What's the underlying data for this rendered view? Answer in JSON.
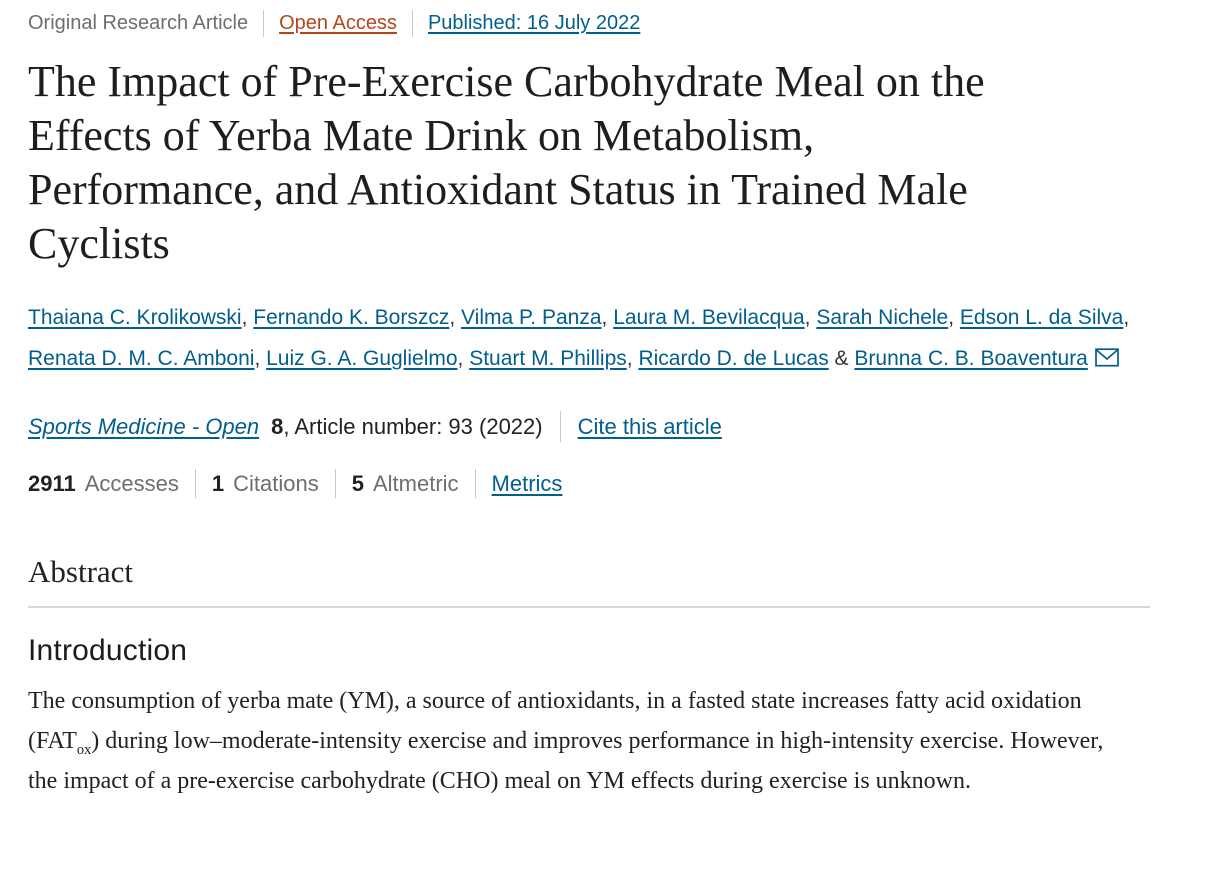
{
  "meta": {
    "article_type": "Original Research Article",
    "open_access_label": "Open Access",
    "published_label": "Published: 16 July 2022"
  },
  "title": "The Impact of Pre-Exercise Carbohydrate Meal on the Effects of Yerba Mate Drink on Metabolism, Performance, and Antioxidant Status in Trained Male Cyclists",
  "authors": {
    "names": [
      "Thaiana C. Krolikowski",
      "Fernando K. Borszcz",
      "Vilma P. Panza",
      "Laura M. Bevilacqua",
      "Sarah Nichele",
      "Edson L. da Silva",
      "Renata D. M. C. Amboni",
      "Luiz G. A. Guglielmo",
      "Stuart M. Phillips",
      "Ricardo D. de Lucas",
      "Brunna C. B. Boaventura"
    ],
    "separator": ", ",
    "last_separator": " & ",
    "email_icon": "envelope-icon"
  },
  "journal": {
    "name": "Sports Medicine - Open",
    "volume": "8",
    "article_info": ", Article number: 93 (2022)",
    "cite_link_label": "Cite this article"
  },
  "metrics": {
    "accesses_value": "2911",
    "accesses_label": "Accesses",
    "citations_value": "1",
    "citations_label": "Citations",
    "altmetric_value": "5",
    "altmetric_label": "Altmetric",
    "metrics_link_label": "Metrics"
  },
  "abstract": {
    "heading": "Abstract",
    "intro_heading": "Introduction",
    "paragraph_part1": "The consumption of yerba mate (YM), a source of antioxidants, in a fasted state increases fatty acid oxidation (FAT",
    "paragraph_sub": "ox",
    "paragraph_part2": ") during low–moderate-intensity exercise and improves performance in high-intensity exercise. However, the impact of a pre-exercise carbohydrate (CHO) meal on YM effects during exercise is unknown."
  },
  "colors": {
    "link_blue": "#025e8d",
    "open_access_orange": "#b5451d",
    "text_dark": "#222222",
    "text_gray": "#6e6e6e"
  }
}
